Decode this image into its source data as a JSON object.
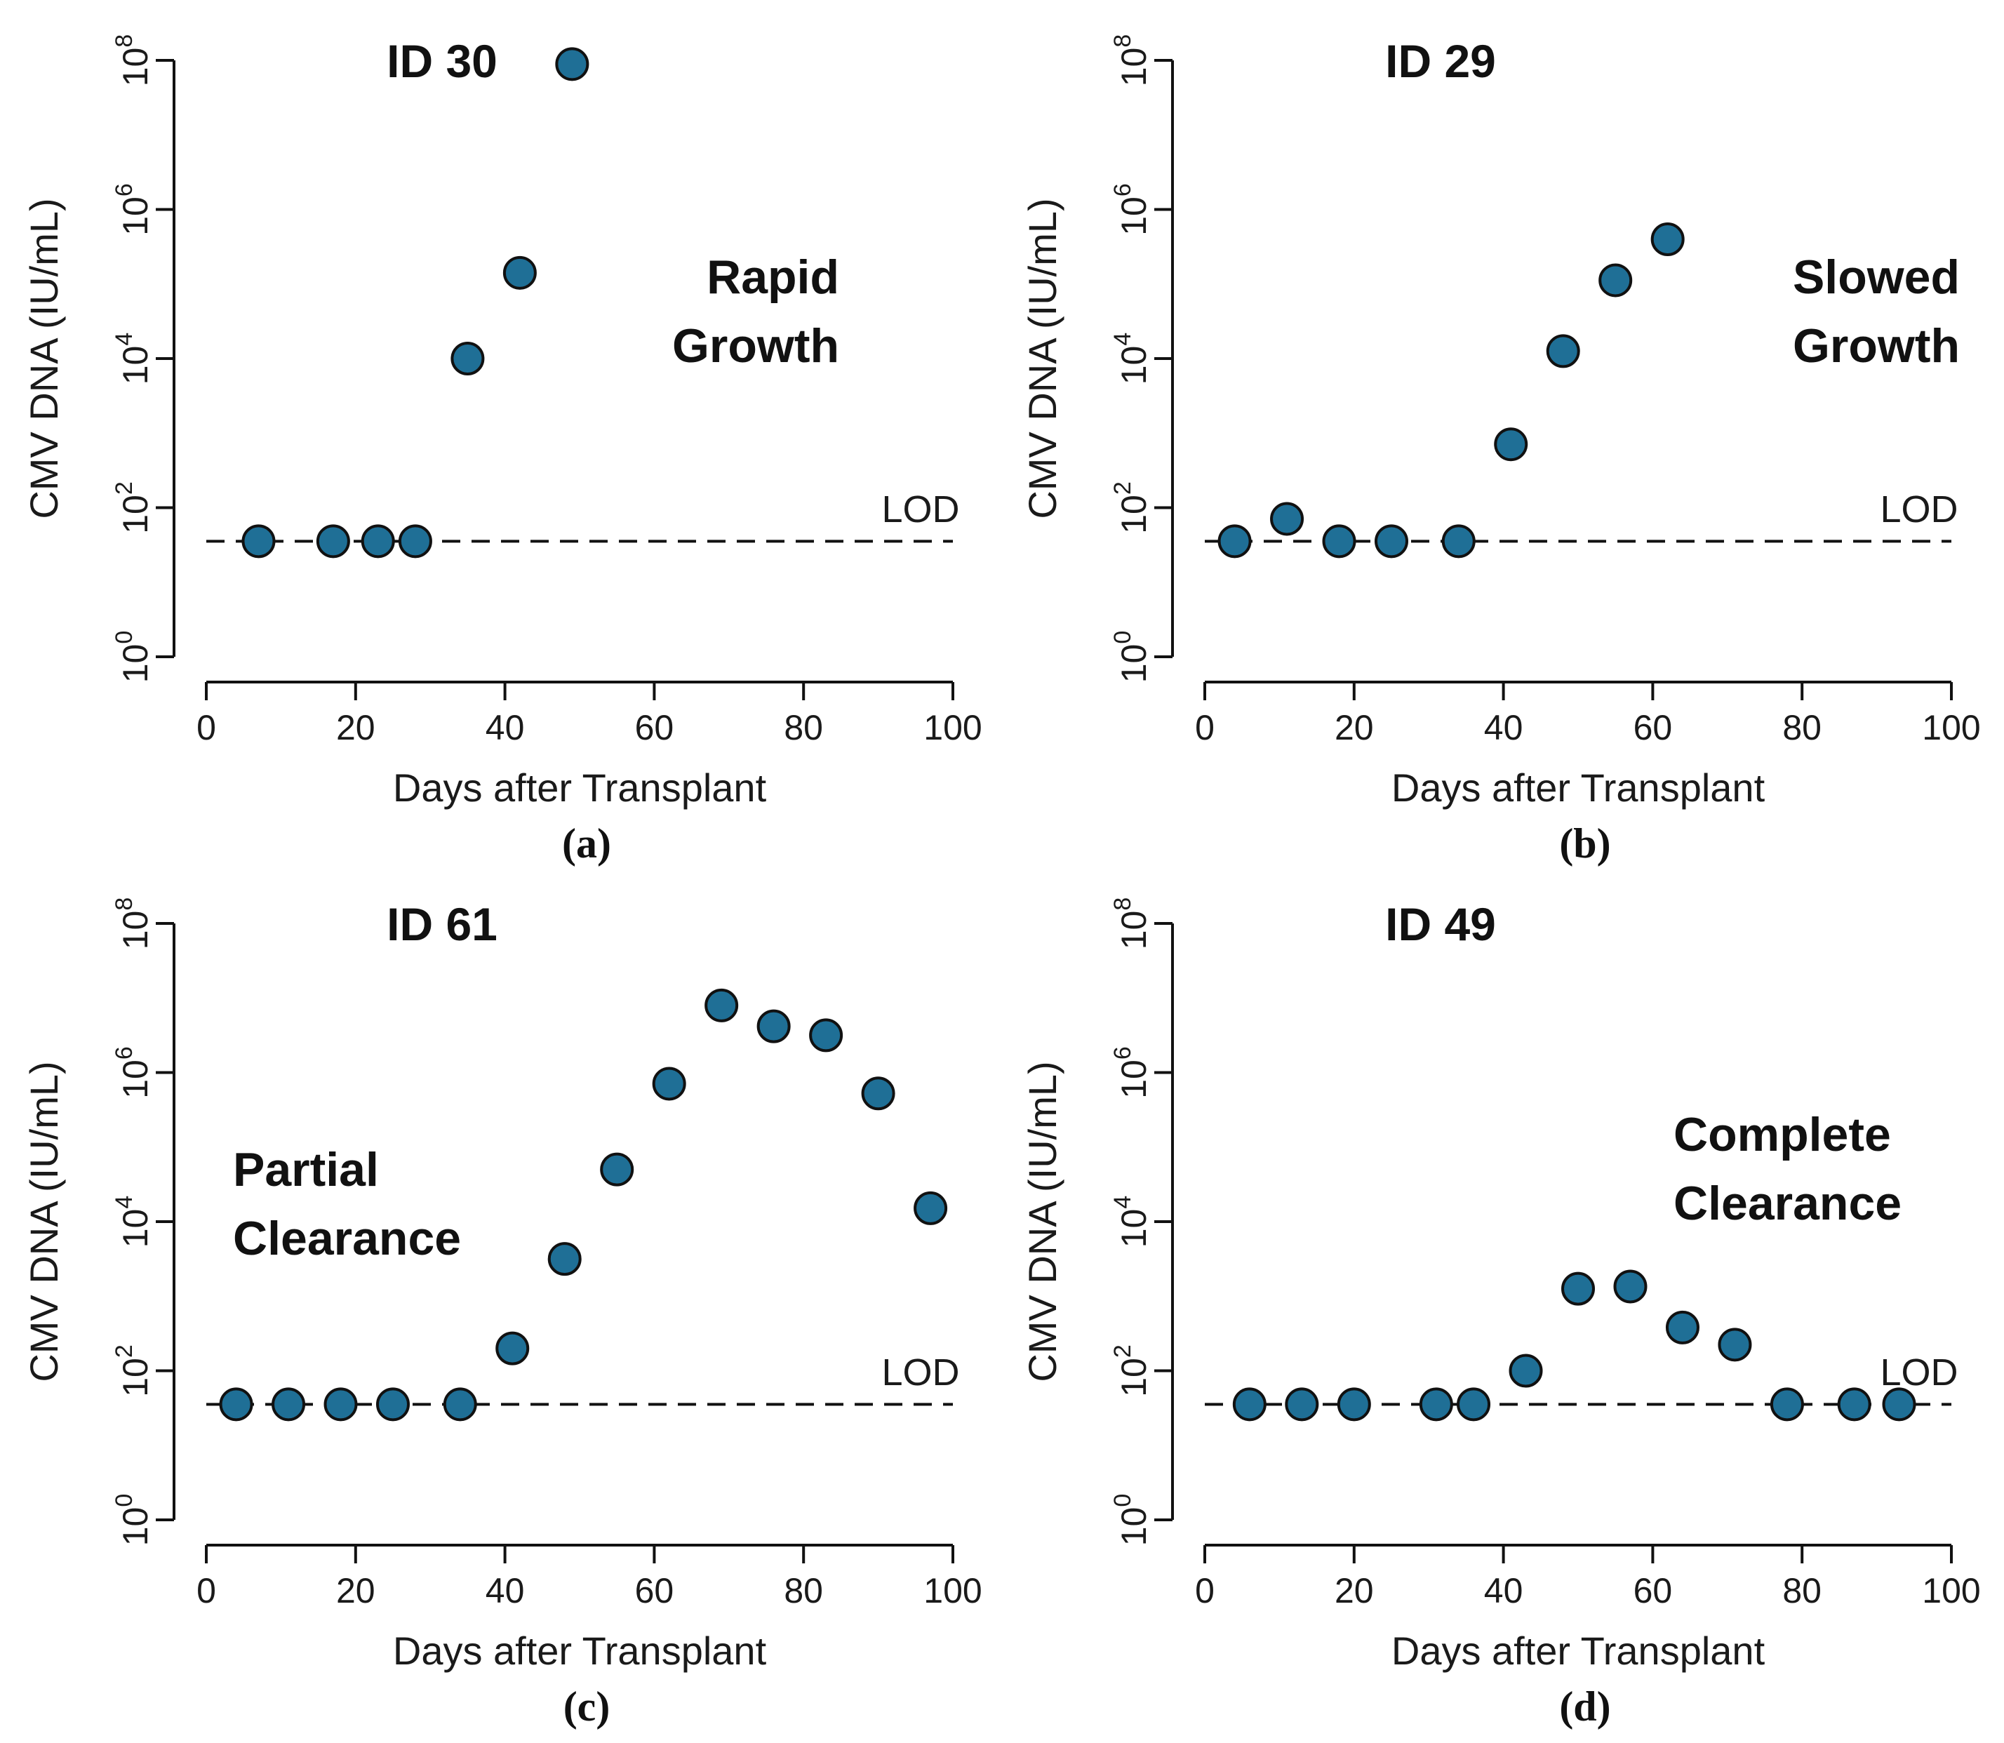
{
  "chart_data": [
    {
      "type": "scatter",
      "caption": "(a)",
      "title": "ID 30",
      "annotation": [
        "Rapid",
        "Growth"
      ],
      "annotation_anchor": "end",
      "xlabel": "Days after Transplant",
      "ylabel": "CMV DNA (IU/mL)",
      "xlim": [
        0,
        100
      ],
      "xticks": [
        0,
        20,
        40,
        60,
        80,
        100
      ],
      "ylim_log10": [
        0,
        8
      ],
      "yticks_exp": [
        0,
        2,
        4,
        6,
        8
      ],
      "y_scale": "log10",
      "lod_label": "LOD",
      "lod_log10": 1.55,
      "point_color": "#1f6f96",
      "points": [
        {
          "x": 7,
          "log10y": 1.55
        },
        {
          "x": 17,
          "log10y": 1.55
        },
        {
          "x": 23,
          "log10y": 1.55
        },
        {
          "x": 28,
          "log10y": 1.55
        },
        {
          "x": 35,
          "log10y": 4.0
        },
        {
          "x": 42,
          "log10y": 5.15
        },
        {
          "x": 49,
          "log10y": 7.95
        }
      ]
    },
    {
      "type": "scatter",
      "caption": "(b)",
      "title": "ID 29",
      "annotation": [
        "Slowed",
        "Growth"
      ],
      "annotation_anchor": "end",
      "xlabel": "Days after Transplant",
      "ylabel": "CMV DNA (IU/mL)",
      "xlim": [
        0,
        100
      ],
      "xticks": [
        0,
        20,
        40,
        60,
        80,
        100
      ],
      "ylim_log10": [
        0,
        8
      ],
      "yticks_exp": [
        0,
        2,
        4,
        6,
        8
      ],
      "y_scale": "log10",
      "lod_label": "LOD",
      "lod_log10": 1.55,
      "point_color": "#1f6f96",
      "points": [
        {
          "x": 4,
          "log10y": 1.55
        },
        {
          "x": 11,
          "log10y": 1.85
        },
        {
          "x": 18,
          "log10y": 1.55
        },
        {
          "x": 25,
          "log10y": 1.55
        },
        {
          "x": 34,
          "log10y": 1.55
        },
        {
          "x": 41,
          "log10y": 2.85
        },
        {
          "x": 48,
          "log10y": 4.1
        },
        {
          "x": 55,
          "log10y": 5.05
        },
        {
          "x": 62,
          "log10y": 5.6
        }
      ]
    },
    {
      "type": "scatter",
      "caption": "(c)",
      "title": "ID 61",
      "annotation": [
        "Partial",
        "Clearance"
      ],
      "annotation_anchor": "start",
      "xlabel": "Days after Transplant",
      "ylabel": "CMV DNA (IU/mL)",
      "xlim": [
        0,
        100
      ],
      "xticks": [
        0,
        20,
        40,
        60,
        80,
        100
      ],
      "ylim_log10": [
        0,
        8
      ],
      "yticks_exp": [
        0,
        2,
        4,
        6,
        8
      ],
      "y_scale": "log10",
      "lod_label": "LOD",
      "lod_log10": 1.55,
      "point_color": "#1f6f96",
      "points": [
        {
          "x": 4,
          "log10y": 1.55
        },
        {
          "x": 11,
          "log10y": 1.55
        },
        {
          "x": 18,
          "log10y": 1.55
        },
        {
          "x": 25,
          "log10y": 1.55
        },
        {
          "x": 34,
          "log10y": 1.55
        },
        {
          "x": 41,
          "log10y": 2.3
        },
        {
          "x": 48,
          "log10y": 3.5
        },
        {
          "x": 55,
          "log10y": 4.7
        },
        {
          "x": 62,
          "log10y": 5.85
        },
        {
          "x": 69,
          "log10y": 6.9
        },
        {
          "x": 76,
          "log10y": 6.62
        },
        {
          "x": 83,
          "log10y": 6.5
        },
        {
          "x": 90,
          "log10y": 5.72
        },
        {
          "x": 97,
          "log10y": 4.18
        }
      ]
    },
    {
      "type": "scatter",
      "caption": "(d)",
      "title": "ID 49",
      "annotation": [
        "Complete",
        "Clearance"
      ],
      "annotation_anchor": "start",
      "xlabel": "Days after Transplant",
      "ylabel": "CMV DNA (IU/mL)",
      "xlim": [
        0,
        100
      ],
      "xticks": [
        0,
        20,
        40,
        60,
        80,
        100
      ],
      "ylim_log10": [
        0,
        8
      ],
      "yticks_exp": [
        0,
        2,
        4,
        6,
        8
      ],
      "y_scale": "log10",
      "lod_label": "LOD",
      "lod_log10": 1.55,
      "point_color": "#1f6f96",
      "points": [
        {
          "x": 6,
          "log10y": 1.55
        },
        {
          "x": 13,
          "log10y": 1.55
        },
        {
          "x": 20,
          "log10y": 1.55
        },
        {
          "x": 31,
          "log10y": 1.55
        },
        {
          "x": 36,
          "log10y": 1.55
        },
        {
          "x": 43,
          "log10y": 2.0
        },
        {
          "x": 50,
          "log10y": 3.1
        },
        {
          "x": 57,
          "log10y": 3.13
        },
        {
          "x": 64,
          "log10y": 2.58
        },
        {
          "x": 71,
          "log10y": 2.35
        },
        {
          "x": 78,
          "log10y": 1.55
        },
        {
          "x": 87,
          "log10y": 1.55
        },
        {
          "x": 93,
          "log10y": 1.55
        }
      ]
    }
  ]
}
